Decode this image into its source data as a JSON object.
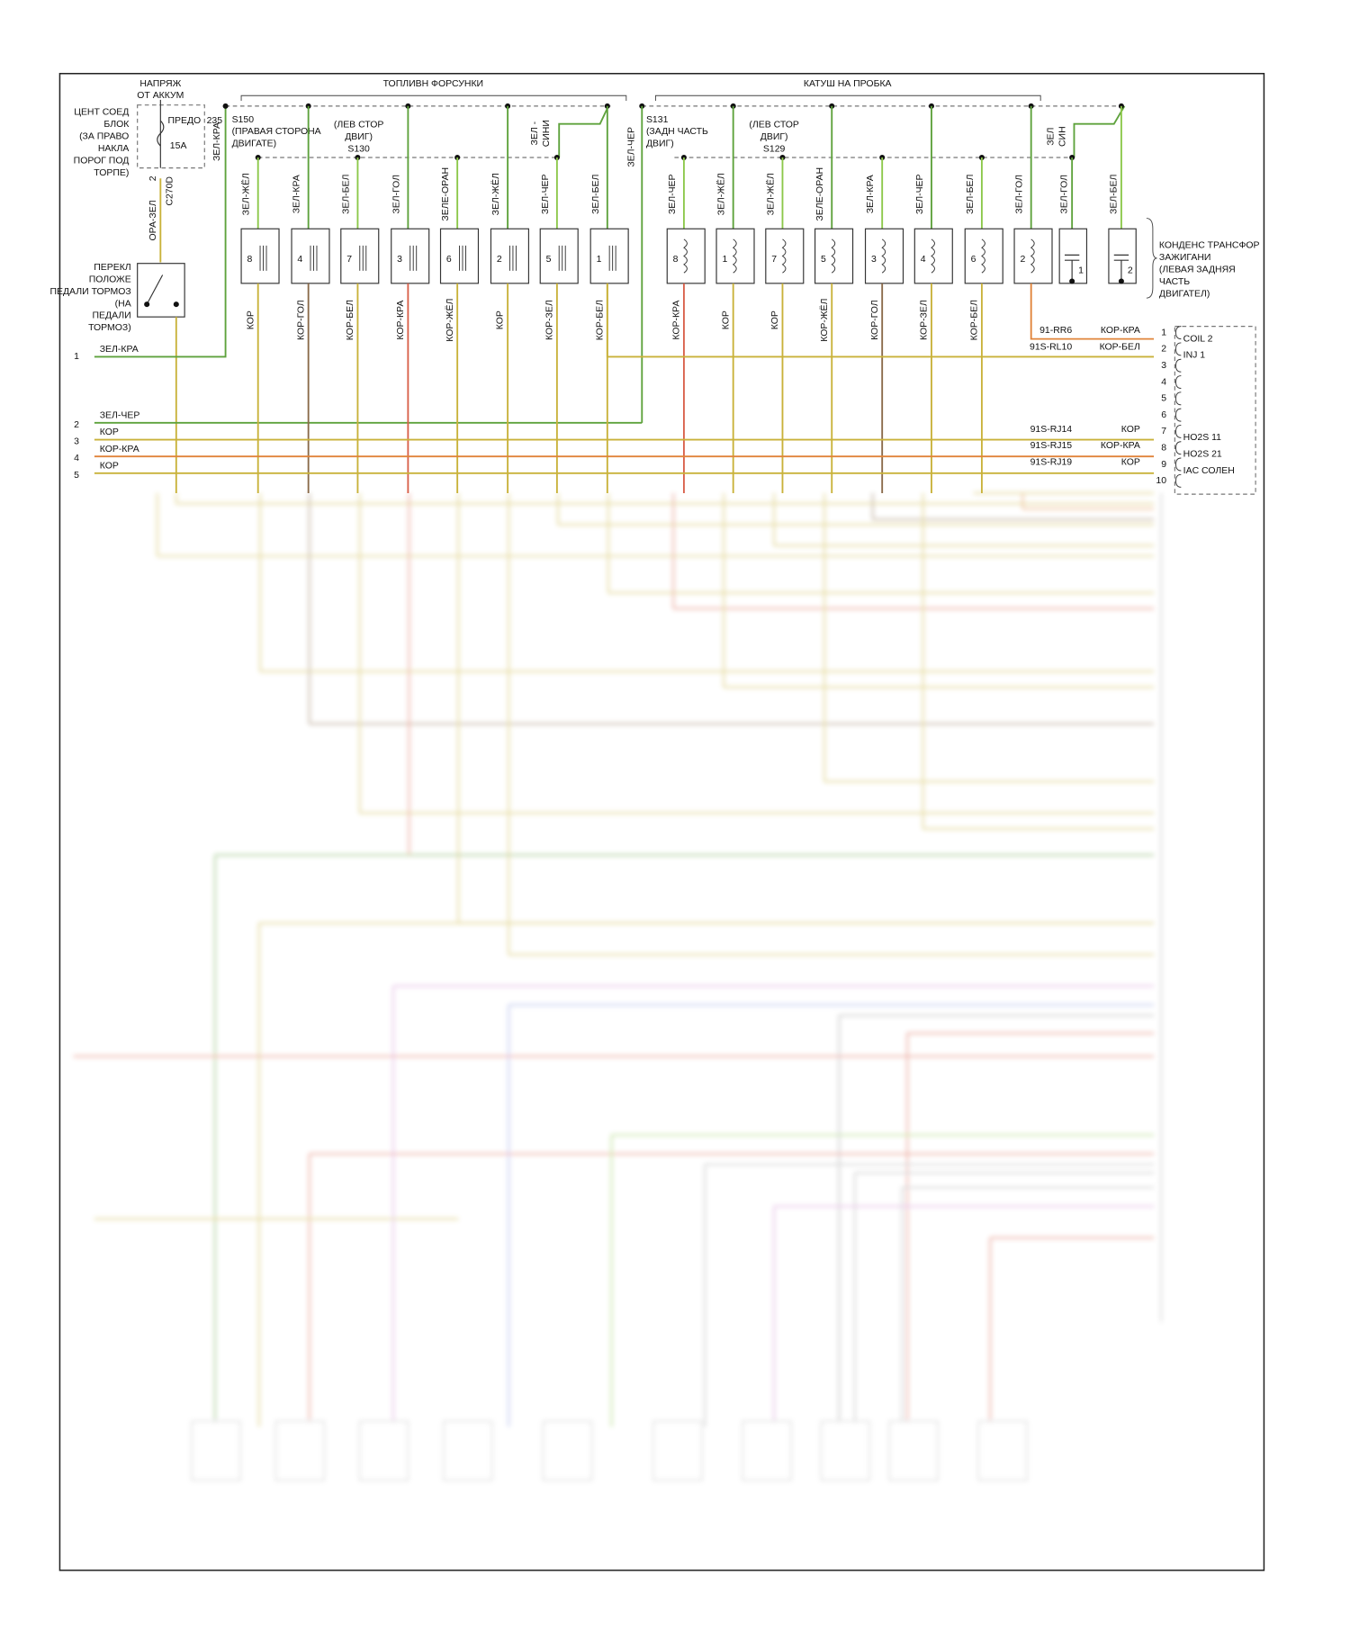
{
  "frame_groups": [
    {
      "label": "ТОПЛИВН ФОРСУНКИ"
    },
    {
      "label": "КАТУШ НА ПРОБКА"
    }
  ],
  "power_source": {
    "lines": [
      "НАПРЯЖ",
      "ОТ АККУМ"
    ]
  },
  "fuse_block": {
    "lines": [
      "ЦЕНТ СОЕД",
      "БЛОК",
      "(ЗА ПРАВО",
      "НАКЛА",
      "ПОРОГ ПОД",
      "ТОРПЕ)"
    ],
    "fuse_label": "ПРЕДО",
    "fuse_rating": "15А",
    "circuit": "235",
    "pin": "2",
    "connector": "C270D",
    "wire": "ОРА-ЗЕЛ",
    "feed_wire": "ЗЕЛ-КРА"
  },
  "brake_switch": {
    "lines": [
      "ПЕРЕКЛ",
      "ПОЛОЖЕ",
      "ПЕДАЛИ ТОРМОЗ",
      "(НА",
      "ПЕДАЛИ",
      "ТОРМОЗ)"
    ]
  },
  "splices": [
    {
      "lines": [
        "S150",
        "(ПРАВАЯ СТОРОНА",
        "ДВИГАТЕ)"
      ]
    },
    {
      "lines": [
        "(ЛЕВ СТОР",
        "ДВИГ)",
        "S130"
      ]
    },
    {
      "lines": [
        "S131",
        "(ЗАДН ЧАСТЬ",
        "ДВИГ)"
      ]
    },
    {
      "lines": [
        "(ЛЕВ СТОР",
        "ДВИГ)",
        "S129"
      ]
    }
  ],
  "jumper_wires": [
    {
      "lines": [
        "ЗЕЛ -",
        "СИНИ"
      ]
    },
    {
      "lines": [
        "ЗЕЛ-ЧЕР"
      ]
    },
    {
      "lines": [
        "ЗЕЛ",
        "СИН"
      ]
    }
  ],
  "injectors": [
    {
      "top": "ЗЕЛ-ЖЁЛ",
      "number": "8",
      "bottom": "КОР"
    },
    {
      "top": "ЗЕЛ-КРА",
      "number": "4",
      "bottom": "КОР-ГОЛ"
    },
    {
      "top": "ЗЕЛ-БЕЛ",
      "number": "7",
      "bottom": "КОР-БЕЛ"
    },
    {
      "top": "ЗЕЛ-ГОЛ",
      "number": "3",
      "bottom": "КОР-КРА"
    },
    {
      "top": "ЗЕЛЕ-ОРАН",
      "number": "6",
      "bottom": "КОР-ЖЁЛ"
    },
    {
      "top": "ЗЕЛ-ЖЁЛ",
      "number": "2",
      "bottom": "КОР"
    },
    {
      "top": "ЗЕЛ-ЧЕР",
      "number": "5",
      "bottom": "КОР-ЗЕЛ"
    },
    {
      "top": "ЗЕЛ-БЕЛ",
      "number": "1",
      "bottom": "КОР-БЕЛ"
    }
  ],
  "coils": [
    {
      "top": "ЗЕЛ-ЧЕР",
      "number": "8",
      "bottom": "КОР-КРА"
    },
    {
      "top": "ЗЕЛ-ЖЁЛ",
      "number": "1",
      "bottom": "КОР"
    },
    {
      "top": "ЗЕЛ-ЖЁЛ",
      "number": "7",
      "bottom": "КОР"
    },
    {
      "top": "ЗЕЛЕ-ОРАН",
      "number": "5",
      "bottom": "КОР-ЖЁЛ"
    },
    {
      "top": "ЗЕЛ-КРА",
      "number": "3",
      "bottom": "КОР-ГОЛ"
    },
    {
      "top": "ЗЕЛ-ЧЕР",
      "number": "4",
      "bottom": "КОР-ЗЕЛ"
    },
    {
      "top": "ЗЕЛ-БЕЛ",
      "number": "6",
      "bottom": "КОР-БЕЛ"
    },
    {
      "top": "ЗЕЛ-ГОЛ",
      "number": "2"
    }
  ],
  "condenser": {
    "lines": [
      "КОНДЕНС ТРАНСФОР",
      "ЗАЖИГАНИ",
      "(ЛЕВАЯ ЗАДНЯЯ",
      "ЧАСТЬ",
      "ДВИГАТЕЛ)"
    ],
    "units": [
      {
        "top": "ЗЕЛ-ГОЛ",
        "number": "1"
      },
      {
        "top": "ЗЕЛ-БЕЛ",
        "number": "2"
      }
    ]
  },
  "left_wires": [
    {
      "pin": "1",
      "label": "ЗЕЛ-КРА"
    },
    {
      "pin": "2",
      "label": "ЗЕЛ-ЧЕР"
    },
    {
      "pin": "3",
      "label": "КОР"
    },
    {
      "pin": "4",
      "label": "КОР-КРА"
    },
    {
      "pin": "5",
      "label": "КОР"
    }
  ],
  "connector_pins": [
    {
      "pin": "1",
      "circuit": "91-RR6",
      "color": "КОР-КРА",
      "name": "COIL 2"
    },
    {
      "pin": "2",
      "circuit": "91S-RL10",
      "color": "КОР-БЕЛ",
      "name": "INJ 1"
    },
    {
      "pin": "3"
    },
    {
      "pin": "4"
    },
    {
      "pin": "5"
    },
    {
      "pin": "6"
    },
    {
      "pin": "7",
      "circuit": "91S-RJ14",
      "color": "КОР",
      "name": "HO2S 11"
    },
    {
      "pin": "8",
      "circuit": "91S-RJ15",
      "color": "КОР-КРА",
      "name": "HO2S 21"
    },
    {
      "pin": "9",
      "circuit": "91S-RJ19",
      "color": "КОР",
      "name": "IAC СОЛЕН"
    },
    {
      "pin": "10"
    }
  ]
}
